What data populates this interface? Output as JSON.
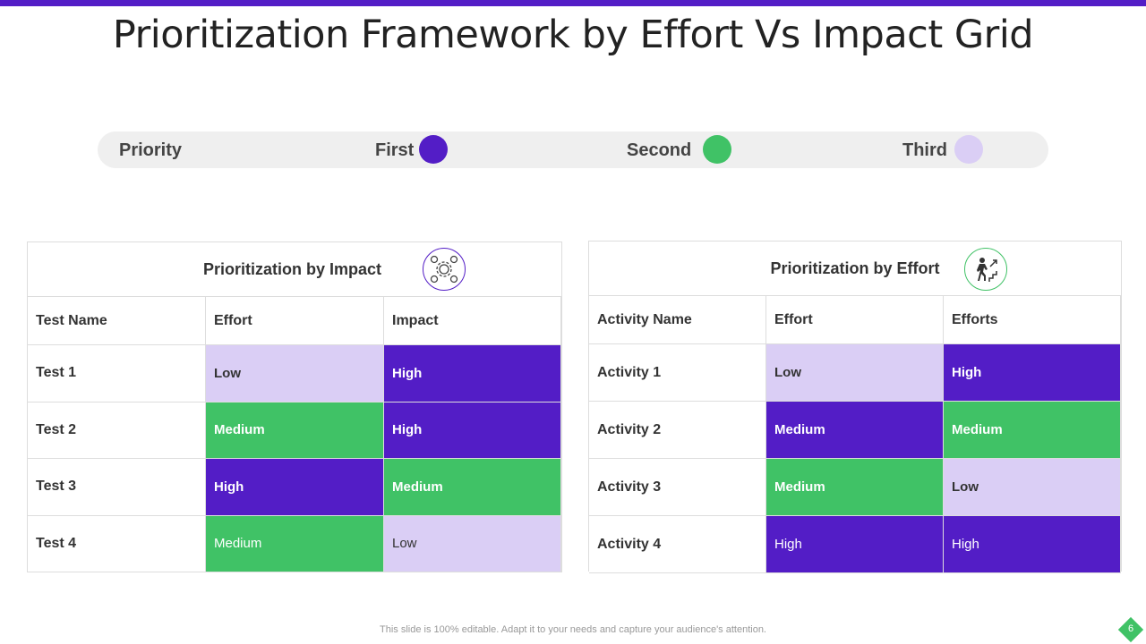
{
  "title": "Prioritization Framework by Effort Vs Impact Grid",
  "colors": {
    "first": "#531dc6",
    "second": "#40c266",
    "third": "#dacef5"
  },
  "legend": {
    "label": "Priority",
    "first": "First",
    "second": "Second",
    "third": "Third"
  },
  "impact_table": {
    "title": "Prioritization by Impact",
    "icon": "gears-process-icon",
    "headers": [
      "Test Name",
      "Effort",
      "Impact"
    ],
    "rows": [
      [
        "Test 1",
        "Low",
        "High"
      ],
      [
        "Test 2",
        "Medium",
        "High"
      ],
      [
        "Test 3",
        "High",
        "Medium"
      ],
      [
        "Test 4",
        "Medium",
        "Low"
      ]
    ]
  },
  "effort_table": {
    "title": "Prioritization by Effort",
    "icon": "stairs-climb-icon",
    "headers": [
      "Activity  Name",
      "Effort",
      "Efforts"
    ],
    "rows": [
      [
        "Activity  1",
        "Low",
        "High"
      ],
      [
        "Activity  2",
        "Medium",
        "Medium"
      ],
      [
        "Activity  3",
        "Medium",
        "Low"
      ],
      [
        "Activity  4",
        "High",
        "High"
      ]
    ]
  },
  "footer": "This slide is 100% editable. Adapt it to your needs and capture your audience's attention.",
  "page_number": "6"
}
